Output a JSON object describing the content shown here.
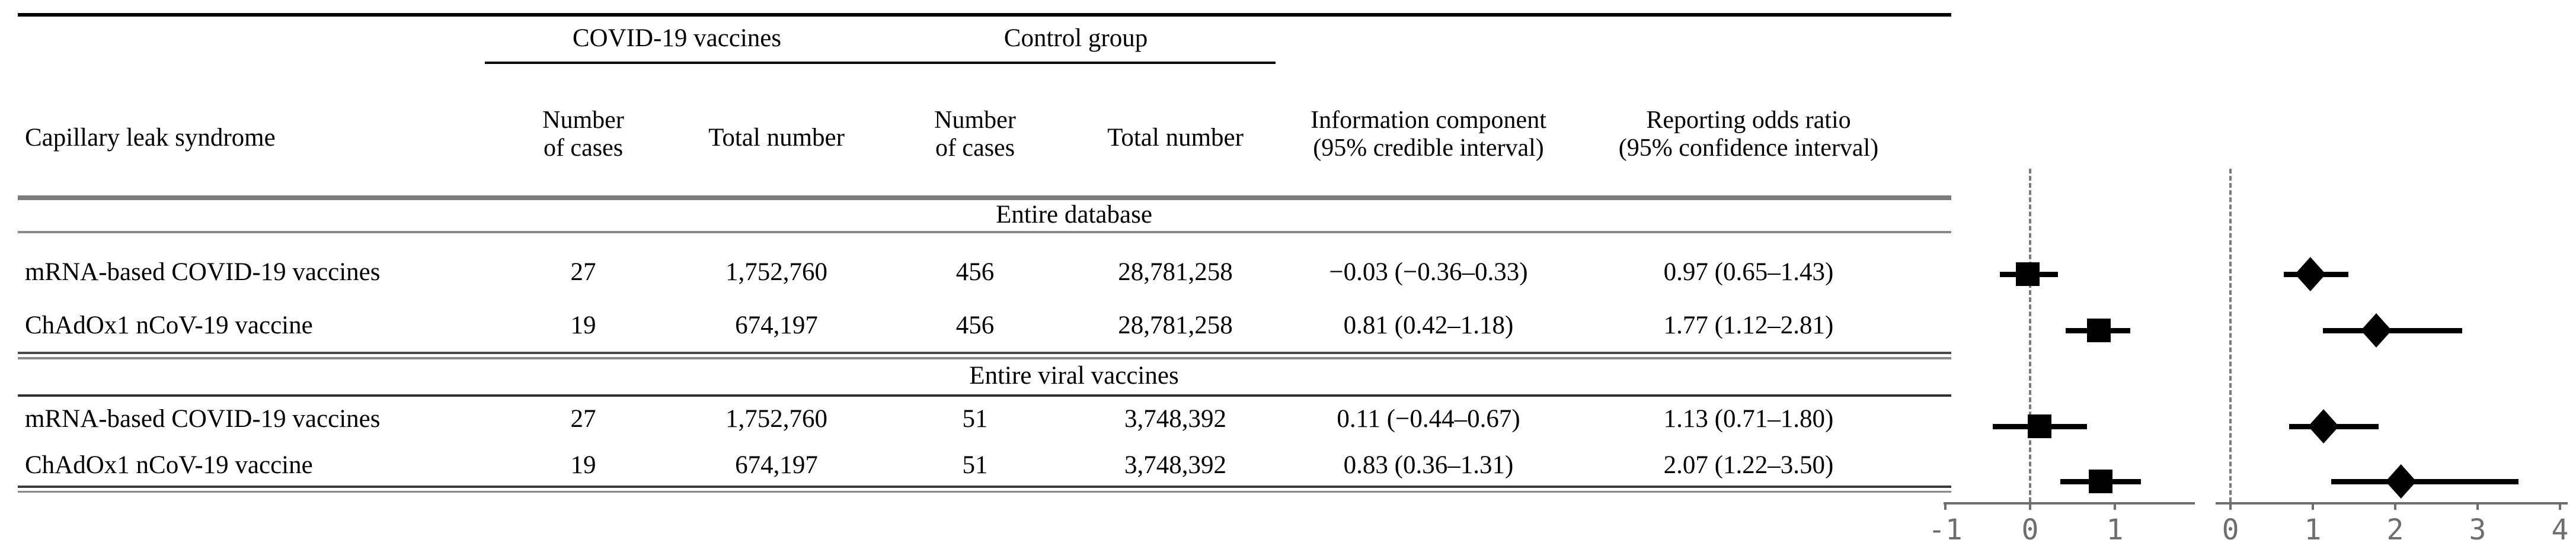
{
  "figure": {
    "background": "#ffffff",
    "text_color": "#000000",
    "axis_color": "#6e6e6e",
    "marker_color": "#000000"
  },
  "table": {
    "row_header": "Capillary leak syndrome",
    "group_headers": [
      "COVID-19 vaccines",
      "Control group"
    ],
    "col_headers": {
      "cases_covid": [
        "Number",
        "of cases"
      ],
      "total_covid": "Total number",
      "cases_control": [
        "Number",
        "of cases"
      ],
      "total_control": "Total number",
      "ic": [
        "Information component",
        "(95% credible interval)"
      ],
      "ror": [
        "Reporting odds ratio",
        "(95% confidence interval)"
      ]
    },
    "sections": [
      {
        "title": "Entire database",
        "rows": [
          {
            "label": "mRNA-based COVID-19 vaccines",
            "cases": "27",
            "total": "1,752,760",
            "ctrl_cases": "456",
            "ctrl_total": "28,781,258",
            "ic": "−0.03 (−0.36–0.33)",
            "ror": "0.97 (0.65–1.43)"
          },
          {
            "label": "ChAdOx1 nCoV-19 vaccine",
            "cases": "19",
            "total": "674,197",
            "ctrl_cases": "456",
            "ctrl_total": "28,781,258",
            "ic": "0.81 (0.42–1.18)",
            "ror": "1.77 (1.12–2.81)"
          }
        ]
      },
      {
        "title": "Entire viral vaccines",
        "rows": [
          {
            "label": "mRNA-based COVID-19 vaccines",
            "cases": "27",
            "total": "1,752,760",
            "ctrl_cases": "51",
            "ctrl_total": "3,748,392",
            "ic": "0.11 (−0.44–0.67)",
            "ror": "1.13 (0.71–1.80)"
          },
          {
            "label": "ChAdOx1 nCoV-19 vaccine",
            "cases": "19",
            "total": "674,197",
            "ctrl_cases": "51",
            "ctrl_total": "3,748,392",
            "ic": "0.83 (0.36–1.31)",
            "ror": "2.07 (1.22–3.50)"
          }
        ]
      }
    ]
  },
  "chart_data": [
    {
      "type": "scatter",
      "subtype": "forest",
      "title": "Information component (95% credible interval)",
      "marker": "square",
      "xlim": [
        -1.021,
        1.944
      ],
      "ticks": [
        -1,
        0,
        1
      ],
      "refline": 0,
      "grid": false,
      "points": [
        {
          "label": "Entire database — mRNA-based COVID-19 vaccines",
          "x": -0.03,
          "lo": -0.36,
          "hi": 0.33
        },
        {
          "label": "Entire database — ChAdOx1 nCoV-19 vaccine",
          "x": 0.81,
          "lo": 0.42,
          "hi": 1.18
        },
        {
          "label": "Entire viral vaccines — mRNA-based COVID-19 vaccines",
          "x": 0.11,
          "lo": -0.44,
          "hi": 0.67
        },
        {
          "label": "Entire viral vaccines — ChAdOx1 nCoV-19 vaccine",
          "x": 0.83,
          "lo": 0.36,
          "hi": 1.31
        }
      ]
    },
    {
      "type": "scatter",
      "subtype": "forest",
      "title": "Reporting odds ratio (95% confidence interval)",
      "marker": "diamond",
      "xlim": [
        -0.18,
        4.094
      ],
      "ticks": [
        0,
        1,
        2,
        3,
        4
      ],
      "refline": 0,
      "grid": false,
      "points": [
        {
          "label": "Entire database — mRNA-based COVID-19 vaccines",
          "x": 0.97,
          "lo": 0.65,
          "hi": 1.43
        },
        {
          "label": "Entire database — ChAdOx1 nCoV-19 vaccine",
          "x": 1.77,
          "lo": 1.12,
          "hi": 2.81
        },
        {
          "label": "Entire viral vaccines — mRNA-based COVID-19 vaccines",
          "x": 1.13,
          "lo": 0.71,
          "hi": 1.8
        },
        {
          "label": "Entire viral vaccines — ChAdOx1 nCoV-19 vaccine",
          "x": 2.07,
          "lo": 1.22,
          "hi": 3.5
        }
      ]
    }
  ]
}
